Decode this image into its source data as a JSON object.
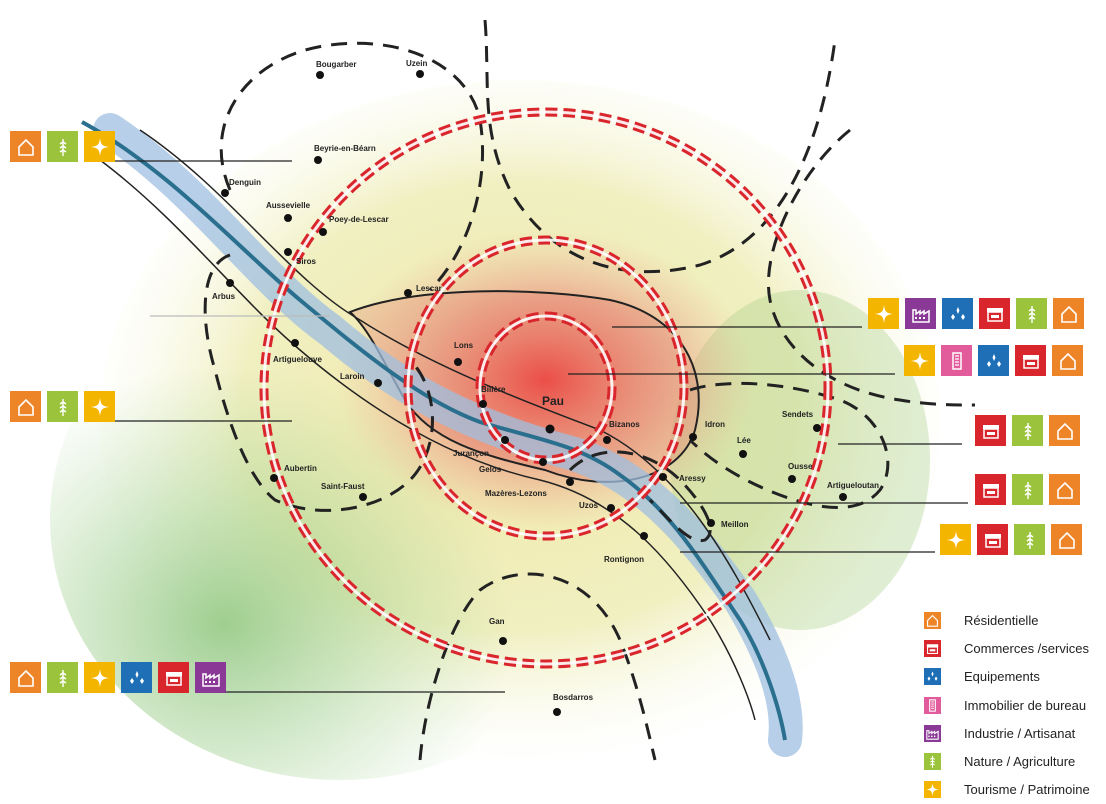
{
  "colors": {
    "residentielle": "#ee8428",
    "commerces": "#d9262c",
    "equipements": "#1f6fb6",
    "immobilier": "#e25c9c",
    "industrie": "#8a3a96",
    "nature": "#9bc43c",
    "tourisme": "#f4b500",
    "river": "#2a6f8e",
    "ring": "#d9262c"
  },
  "towns": [
    {
      "name": "Uzein"
    },
    {
      "name": "Bougarber"
    },
    {
      "name": "Beyrie-en-Béarn"
    },
    {
      "name": "Denguin"
    },
    {
      "name": "Aussevielle"
    },
    {
      "name": "Poey-de-Lescar"
    },
    {
      "name": "Siros"
    },
    {
      "name": "Arbus"
    },
    {
      "name": "Lescar"
    },
    {
      "name": "Lons"
    },
    {
      "name": "Artiguelouve"
    },
    {
      "name": "Laroin"
    },
    {
      "name": "Billère"
    },
    {
      "name": "Pau"
    },
    {
      "name": "Bizanos"
    },
    {
      "name": "Idron"
    },
    {
      "name": "Sendets"
    },
    {
      "name": "Lée"
    },
    {
      "name": "Jurançon"
    },
    {
      "name": "Gelos"
    },
    {
      "name": "Mazères-Lezons"
    },
    {
      "name": "Aressy"
    },
    {
      "name": "Ousse"
    },
    {
      "name": "Artigueloutan"
    },
    {
      "name": "Aubertin"
    },
    {
      "name": "Saint-Faust"
    },
    {
      "name": "Uzos"
    },
    {
      "name": "Meillon"
    },
    {
      "name": "Rontignon"
    },
    {
      "name": "Gan"
    },
    {
      "name": "Bosdarros"
    }
  ],
  "icon_groups": [
    {
      "id": "north-west",
      "icons": [
        "residentielle",
        "nature",
        "tourisme"
      ]
    },
    {
      "id": "west",
      "icons": [
        "residentielle",
        "nature",
        "tourisme"
      ]
    },
    {
      "id": "south-west",
      "icons": [
        "residentielle",
        "nature",
        "tourisme",
        "equipements",
        "commerces",
        "industrie"
      ]
    },
    {
      "id": "east-1",
      "icons": [
        "tourisme",
        "industrie",
        "equipements",
        "commerces",
        "nature",
        "residentielle"
      ]
    },
    {
      "id": "east-2",
      "icons": [
        "tourisme",
        "immobilier",
        "equipements",
        "commerces",
        "residentielle"
      ]
    },
    {
      "id": "east-3",
      "icons": [
        "commerces",
        "nature",
        "residentielle"
      ]
    },
    {
      "id": "east-4",
      "icons": [
        "commerces",
        "nature",
        "residentielle"
      ]
    },
    {
      "id": "east-5",
      "icons": [
        "tourisme",
        "commerces",
        "nature",
        "residentielle"
      ]
    }
  ],
  "legend": [
    {
      "key": "residentielle",
      "label": "Résidentielle"
    },
    {
      "key": "commerces",
      "label": "Commerces /services"
    },
    {
      "key": "equipements",
      "label": "Equipements"
    },
    {
      "key": "immobilier",
      "label": "Immobilier de bureau"
    },
    {
      "key": "industrie",
      "label": "Industrie / Artisanat"
    },
    {
      "key": "nature",
      "label": "Nature / Agriculture"
    },
    {
      "key": "tourisme",
      "label": "Tourisme / Patrimoine"
    }
  ]
}
